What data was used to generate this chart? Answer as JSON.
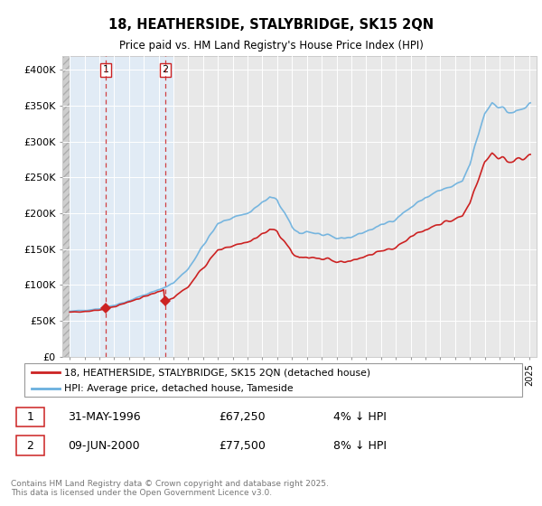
{
  "title": "18, HEATHERSIDE, STALYBRIDGE, SK15 2QN",
  "subtitle": "Price paid vs. HM Land Registry's House Price Index (HPI)",
  "legend_line1": "18, HEATHERSIDE, STALYBRIDGE, SK15 2QN (detached house)",
  "legend_line2": "HPI: Average price, detached house, Tameside",
  "sale1_date": "31-MAY-1996",
  "sale1_price": "£67,250",
  "sale1_hpi": "4% ↓ HPI",
  "sale2_date": "09-JUN-2000",
  "sale2_price": "£77,500",
  "sale2_hpi": "8% ↓ HPI",
  "footer": "Contains HM Land Registry data © Crown copyright and database right 2025.\nThis data is licensed under the Open Government Licence v3.0.",
  "hpi_color": "#6ab0de",
  "sale_color": "#cc2222",
  "marker_color": "#cc2222",
  "sale1_x": 1996.42,
  "sale2_x": 2000.44,
  "sale1_y": 67250,
  "sale2_y": 77500,
  "xlim": [
    1993.5,
    2025.5
  ],
  "ylim": [
    0,
    420000
  ],
  "yticks": [
    0,
    50000,
    100000,
    150000,
    200000,
    250000,
    300000,
    350000,
    400000
  ],
  "ytick_labels": [
    "£0",
    "£50K",
    "£100K",
    "£150K",
    "£200K",
    "£250K",
    "£300K",
    "£350K",
    "£400K"
  ],
  "background_color": "#ffffff",
  "plot_bg_color": "#e8e8e8",
  "shaded_region_color": "#ddeeff",
  "hatch_end": 1994.0,
  "shade_start": 1994.0,
  "shade_end": 2001.0
}
